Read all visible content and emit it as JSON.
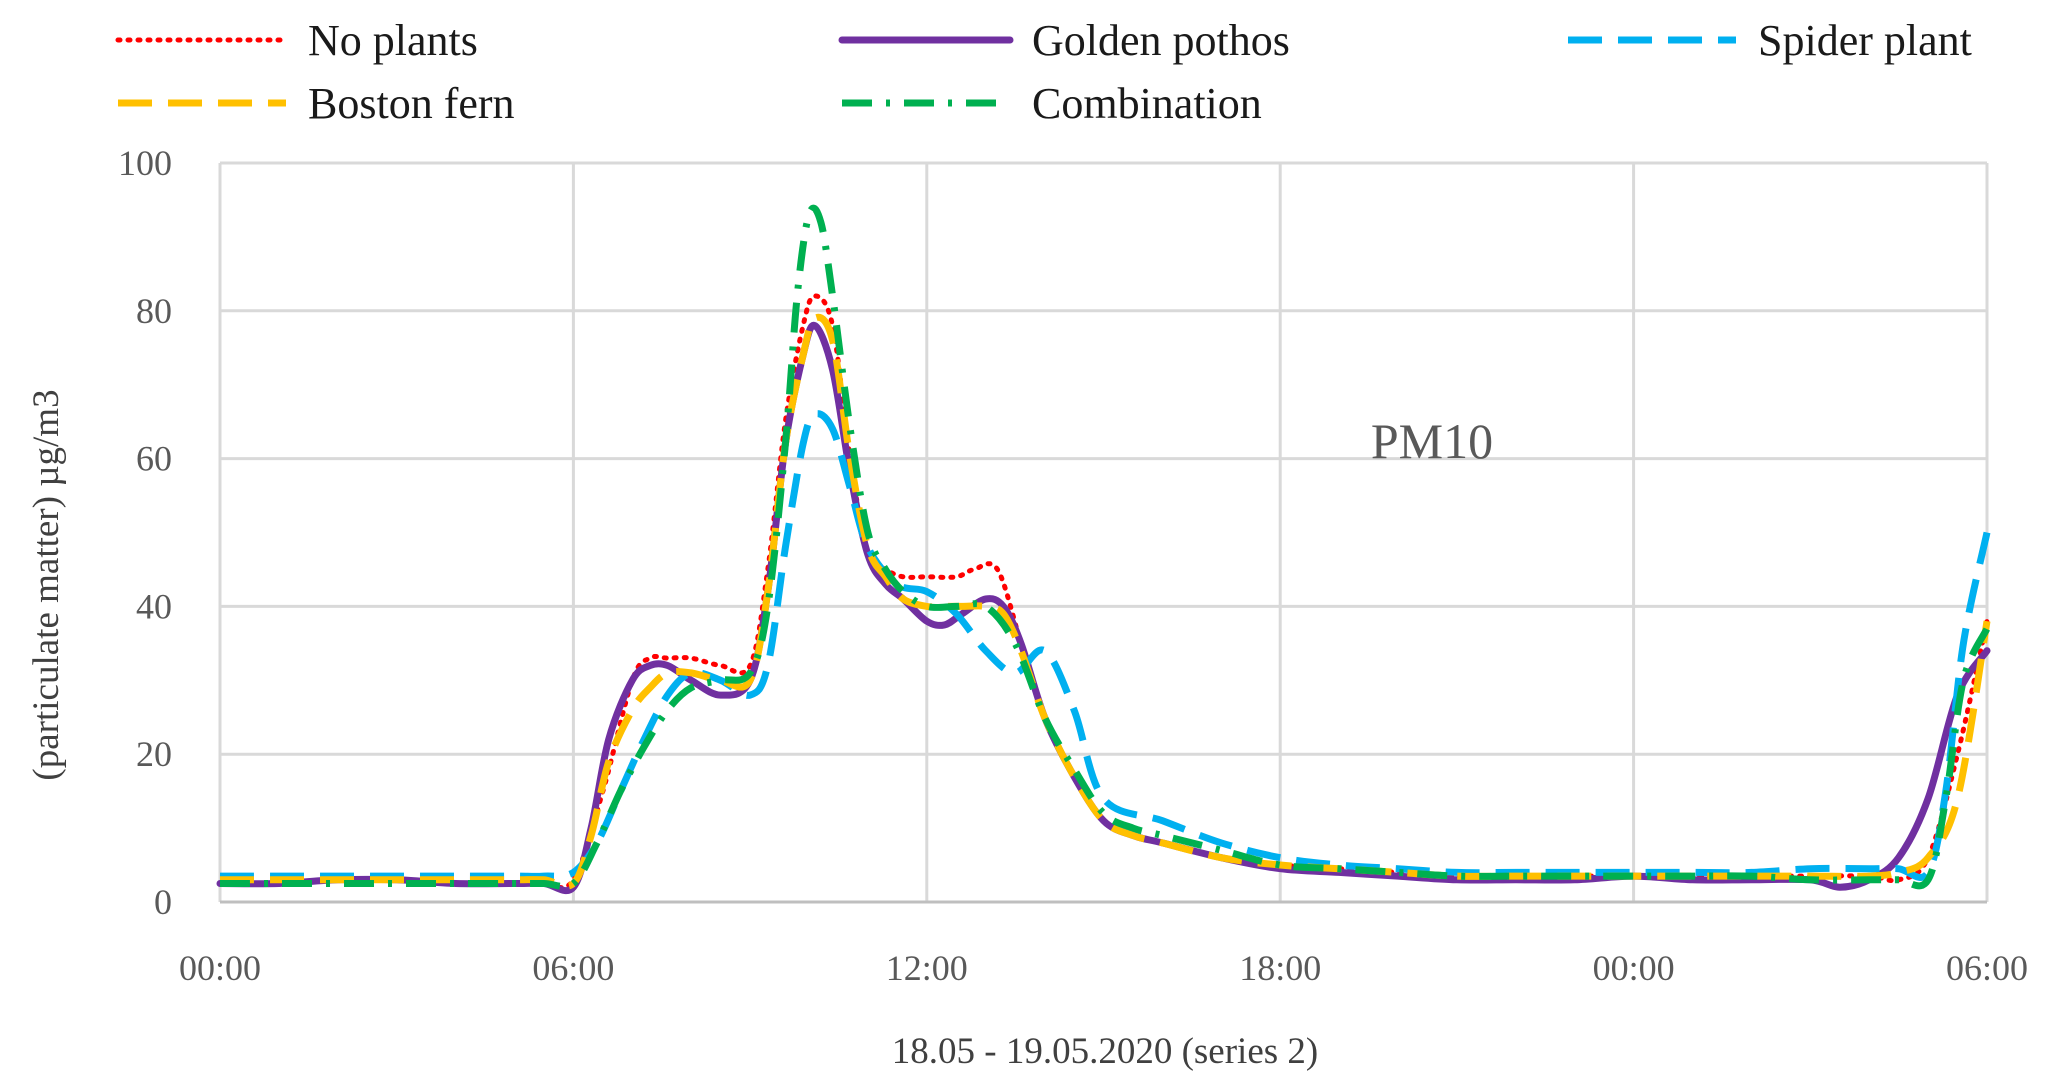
{
  "chart_data": {
    "type": "line",
    "title": "",
    "annotation": "PM10",
    "xlabel": "18.05 - 19.05.2020 (series 2)",
    "ylabel": "(particulate matter) µg/m3",
    "ylim": [
      0,
      100
    ],
    "xlim": [
      0,
      30
    ],
    "y_ticks": [
      0,
      20,
      40,
      60,
      80,
      100
    ],
    "y_tick_labels": [
      "0",
      "20",
      "40",
      "60",
      "80",
      "100"
    ],
    "x_ticks": [
      0,
      6,
      12,
      18,
      24,
      30
    ],
    "x_tick_labels": [
      "00:00",
      "06:00",
      "12:00",
      "18:00",
      "00:00",
      "06:00"
    ],
    "grid": true,
    "legend_position": "top",
    "series": [
      {
        "name": "No plants",
        "color": "#ff0000",
        "dash": "dotted",
        "x": [
          0,
          1,
          2,
          3,
          4,
          5,
          5.5,
          6,
          6.5,
          7,
          7.3,
          7.6,
          8,
          8.5,
          9,
          9.3,
          9.6,
          9.9,
          10.1,
          10.4,
          10.7,
          11,
          11.3,
          11.6,
          12,
          12.5,
          12.8,
          13.2,
          13.6,
          14,
          14.5,
          15,
          15.5,
          16,
          17,
          18,
          19,
          20,
          21,
          22,
          23,
          24,
          25,
          26,
          27,
          28,
          28.5,
          29,
          29.5,
          30
        ],
        "y": [
          2.5,
          2.5,
          3,
          3,
          2.5,
          2.5,
          2.5,
          3,
          15,
          30,
          33,
          33,
          33,
          32,
          32,
          45,
          65,
          78,
          82,
          78,
          60,
          47,
          45,
          44,
          44,
          44,
          45,
          45,
          35,
          25,
          17,
          11,
          9,
          8,
          6,
          5,
          4.5,
          4,
          3.5,
          3.5,
          3.5,
          3.5,
          3.5,
          3.5,
          3.5,
          3.5,
          3,
          6,
          20,
          38
        ]
      },
      {
        "name": "Golden pothos",
        "color": "#7030a0",
        "dash": "solid",
        "x": [
          0,
          1,
          2,
          3,
          4,
          5,
          5.5,
          6,
          6.3,
          6.6,
          7,
          7.3,
          7.6,
          8,
          8.5,
          9,
          9.3,
          9.6,
          9.9,
          10.1,
          10.4,
          10.7,
          11,
          11.3,
          11.6,
          12,
          12.3,
          12.6,
          13,
          13.3,
          13.6,
          14,
          14.5,
          15,
          15.5,
          16,
          17,
          18,
          19,
          20,
          21,
          22,
          23,
          24,
          25,
          26,
          27,
          27.5,
          28,
          28.5,
          29,
          29.5,
          30
        ],
        "y": [
          2.5,
          2.5,
          3,
          3,
          2.5,
          2.5,
          2.5,
          2,
          10,
          22,
          30,
          32,
          32,
          30,
          28,
          30,
          42,
          62,
          74,
          78,
          72,
          58,
          47,
          43,
          41,
          38,
          37.5,
          39,
          41,
          40,
          35,
          25,
          17,
          11,
          9,
          8,
          6,
          4.5,
          4,
          3.5,
          3,
          3,
          3,
          3.5,
          3,
          3,
          3,
          2,
          3,
          6,
          14,
          28,
          34
        ]
      },
      {
        "name": "Spider plant",
        "color": "#00b0f0",
        "dash": "dashed",
        "x": [
          0,
          1,
          2,
          3,
          4,
          5,
          5.5,
          6,
          6.4,
          6.8,
          7.2,
          7.6,
          8,
          8.5,
          9,
          9.3,
          9.6,
          9.9,
          10.1,
          10.4,
          10.7,
          11,
          11.5,
          12,
          12.5,
          13,
          13.5,
          14,
          14.5,
          15,
          16,
          17,
          18,
          19,
          20,
          21,
          22,
          23,
          24,
          25,
          26,
          27,
          28,
          28.5,
          29,
          29.3,
          29.6,
          30
        ],
        "y": [
          3.5,
          3.5,
          3.5,
          3.5,
          3.5,
          3.5,
          3.5,
          4,
          8,
          15,
          22,
          28,
          31,
          30,
          28,
          32,
          48,
          62,
          66,
          64,
          56,
          48,
          43,
          42,
          39,
          34,
          31,
          34,
          26,
          14,
          11,
          8,
          6,
          5,
          4.5,
          4,
          4,
          4,
          4,
          4,
          4,
          4.5,
          4.5,
          4.5,
          4,
          15,
          35,
          50
        ]
      },
      {
        "name": "Boston fern",
        "color": "#ffc000",
        "dash": "dashed",
        "x": [
          0,
          1,
          2,
          3,
          4,
          5,
          5.5,
          6,
          6.3,
          6.6,
          7,
          7.3,
          7.6,
          8,
          8.5,
          9,
          9.3,
          9.6,
          9.9,
          10.1,
          10.4,
          10.7,
          11,
          11.3,
          11.6,
          12,
          12.3,
          12.6,
          13,
          13.3,
          13.6,
          14,
          14.5,
          15,
          15.5,
          16,
          17,
          18,
          19,
          20,
          21,
          22,
          23,
          24,
          25,
          26,
          27,
          28,
          28.5,
          29,
          29.5,
          30
        ],
        "y": [
          3,
          3,
          3,
          3,
          3,
          3,
          3,
          2.5,
          9,
          19,
          26,
          29,
          31,
          31,
          30,
          30,
          42,
          62,
          74,
          79,
          76,
          60,
          48,
          44,
          41,
          40,
          40,
          40,
          40,
          39,
          34,
          25,
          17,
          11,
          9,
          8,
          6,
          5,
          4.5,
          4,
          3.5,
          3.5,
          3.5,
          3.5,
          3.5,
          3.5,
          3.5,
          3.5,
          4,
          6,
          14,
          38
        ]
      },
      {
        "name": "Combination",
        "color": "#00b050",
        "dash": "dash-dot",
        "x": [
          0,
          1,
          2,
          3,
          4,
          5,
          5.5,
          6,
          6.4,
          6.8,
          7.2,
          7.6,
          8,
          8.5,
          9,
          9.3,
          9.6,
          9.8,
          10,
          10.2,
          10.4,
          10.7,
          11,
          11.3,
          11.6,
          12,
          12.5,
          13,
          13.5,
          14,
          14.5,
          15,
          15.5,
          16,
          17,
          18,
          19,
          20,
          21,
          22,
          23,
          24,
          25,
          26,
          27,
          28,
          28.5,
          29,
          29.3,
          29.6,
          30
        ],
        "y": [
          2.5,
          2.5,
          2.5,
          2.5,
          2.5,
          2.5,
          2.5,
          2.5,
          8,
          15,
          21,
          26,
          29,
          30,
          31,
          40,
          62,
          82,
          93,
          92,
          82,
          64,
          50,
          45,
          42,
          40,
          40,
          40,
          35,
          25,
          18,
          12,
          10,
          9,
          7,
          5,
          4.5,
          4,
          3.5,
          3.5,
          3.5,
          3.5,
          3.5,
          3.5,
          3,
          3,
          3,
          3,
          14,
          30,
          37
        ]
      }
    ]
  }
}
